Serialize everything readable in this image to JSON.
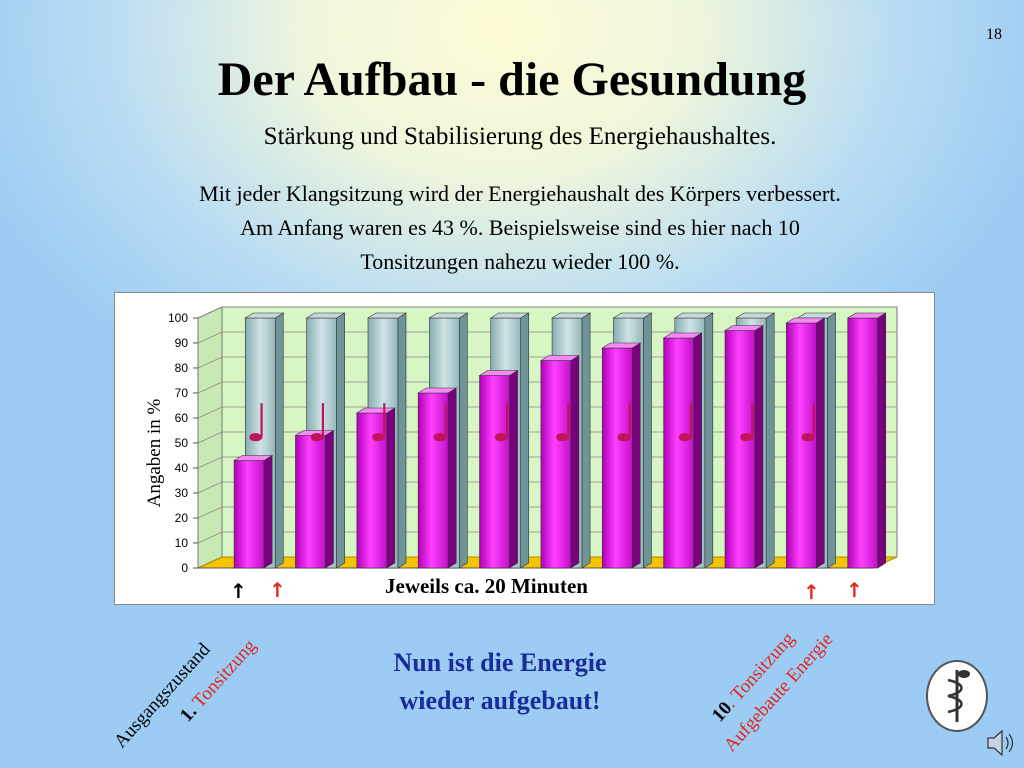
{
  "slide": {
    "number": "18",
    "title": "Der Aufbau - die Gesundung",
    "subtitle": "Stärkung und Stabilisierung  des Energiehaushaltes.",
    "body_lines": [
      "Mit jeder Klangsitzung wird der Energiehaushalt des Körpers verbessert.",
      "Am Anfang waren es 43 %. Beispielsweise sind es hier nach 10",
      "Tonsitzungen nahezu wieder 100 %."
    ],
    "conclusion_line1": "Nun ist die Energie",
    "conclusion_line2": "wieder aufgebaut!",
    "label_start": "Ausgangszustand",
    "label_first_num": "1.",
    "label_first_text": " Tonsitzung",
    "label_tenth_num": "10",
    "label_tenth_text": ". Tonsitzung",
    "label_rebuilt": "Aufgebaute Energie",
    "arrow_glyph": "↑",
    "note_glyph": "♩",
    "colors": {
      "bar_magenta": "#e81ee8",
      "bar_teal": "#a9c9cc",
      "plot_bg": "#d8f5c4",
      "floor": "#f5c400",
      "conclusion_text": "#1a2b9a",
      "annotation_red": "#e0281c",
      "arrow_black": "#000000"
    },
    "icons": [
      "music-note-icon",
      "arrow-up-icon",
      "caduceus-logo-icon",
      "speaker-icon"
    ]
  },
  "chart_data": {
    "type": "bar",
    "ylabel": "Angaben in %",
    "xlabel": "Jeweils ca. 20 Minuten",
    "ylim": [
      0,
      100
    ],
    "yticks": [
      0,
      10,
      20,
      30,
      40,
      50,
      60,
      70,
      80,
      90,
      100
    ],
    "grid": true,
    "series": [
      {
        "values": [
          43,
          53,
          62,
          70,
          77,
          83,
          88,
          92,
          95,
          98,
          100
        ]
      },
      {
        "values": [
          100,
          100,
          100,
          100,
          100,
          100,
          100,
          100,
          100,
          100
        ]
      }
    ]
  }
}
